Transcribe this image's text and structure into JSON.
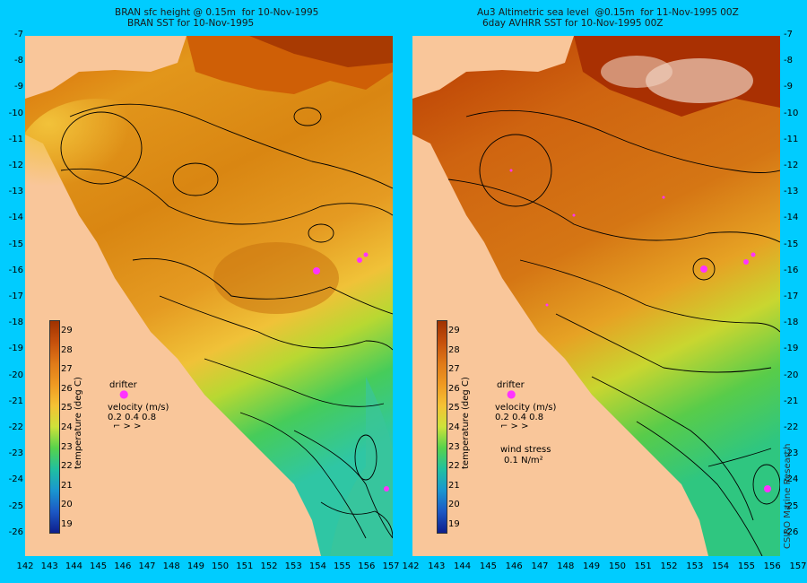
{
  "left_panel": {
    "title_line1": "BRAN sfc height @ 0.15m  for 10-Nov-1995",
    "title_line2": "BRAN SST for 10-Nov-1995"
  },
  "right_panel": {
    "title_line1": "Au3 Altimetric sea level  @0.15m  for 11-Nov-1995 00Z",
    "title_line2": "6day AVHRR SST for 10-Nov-1995 00Z"
  },
  "y_axis_labels": [
    "-7",
    "-8",
    "-9",
    "-10",
    "-11",
    "-12",
    "-13",
    "-14",
    "-15",
    "-16",
    "-17",
    "-18",
    "-19",
    "-20",
    "-21",
    "-22",
    "-23",
    "-24",
    "-25",
    "-26"
  ],
  "x_axis_labels": [
    "142",
    "143",
    "144",
    "145",
    "146",
    "147",
    "148",
    "149",
    "150",
    "151",
    "152",
    "153",
    "154",
    "155",
    "156",
    "157"
  ],
  "colorbar": {
    "label": "temperature (deg C)",
    "ticks": [
      "29",
      "28",
      "27",
      "26",
      "25",
      "24",
      "23",
      "22",
      "21",
      "20",
      "19"
    ]
  },
  "legend": {
    "drifter": "drifter",
    "velocity_title": "velocity (m/s)",
    "velocity_values": "0.2 0.4 0.8",
    "wind_title": "wind stress",
    "wind_value": "0.1 N/m²"
  },
  "credit": "CSIRO Marine Research",
  "colors": {
    "background": "#00ccff",
    "land": "#f9c69a",
    "drifter": "#ff33ff",
    "contour": "#000000"
  }
}
